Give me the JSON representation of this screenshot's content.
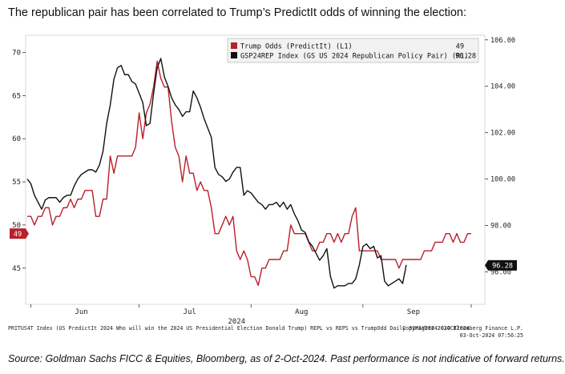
{
  "headline": "The republican pair has been correlated to Trump’s PredictIt odds of winning the election:",
  "footer": {
    "series_info": "PRITUS4T Index (US PredictIt 2024 Who will win the 2024 US Presidential Election Donald Trump) REPL vs REPS vs TrumpOdd  Daily 31MAY2024-03OCT2024",
    "copyright": "Copyright® 2024 Bloomberg Finance L.P.",
    "timestamp": "03-Oct-2024 07:56:25"
  },
  "source": "Source: Goldman Sachs FICC & Equities, Bloomberg, as of 2-Oct-2024. Past performance is not indicative of forward returns.",
  "colors": {
    "trump": "#b8202a",
    "gs": "#111111",
    "legend_bg": "#f2f2f2",
    "last_label_gs": "#111111"
  },
  "chart_data": {
    "type": "line",
    "year_label": "2024",
    "x_ticks": [
      {
        "label": "Jun",
        "date": "2024-06-15"
      },
      {
        "label": "Jul",
        "date": "2024-07-15"
      },
      {
        "label": "Aug",
        "date": "2024-08-15"
      },
      {
        "label": "Sep",
        "date": "2024-09-15"
      }
    ],
    "x_range": [
      "2024-05-31",
      "2024-10-03"
    ],
    "left_axis": {
      "ticks": [
        "70",
        "65",
        "60",
        "55",
        "50",
        "45"
      ],
      "range": [
        40.8,
        72
      ]
    },
    "right_axis": {
      "ticks": [
        "106.00",
        "104.00",
        "102.00",
        "100.00",
        "98.00",
        "96.00"
      ],
      "range": [
        94.6,
        106.2
      ]
    },
    "legend": [
      {
        "name": "Trump Odds (PredictIt) (L1)",
        "last": "49"
      },
      {
        "name": "GSP24REP Index (GS US 2024 Republican Policy Pair) (R1)",
        "last": "96.28"
      }
    ],
    "last_labels": {
      "trump": "49",
      "gs": "96.28"
    },
    "series": [
      {
        "name": "Trump Odds (PredictIt) (L1)",
        "axis": "left",
        "points": [
          [
            "2024-05-31",
            51
          ],
          [
            "2024-06-01",
            51
          ],
          [
            "2024-06-02",
            50
          ],
          [
            "2024-06-03",
            51
          ],
          [
            "2024-06-04",
            51
          ],
          [
            "2024-06-05",
            52
          ],
          [
            "2024-06-06",
            52
          ],
          [
            "2024-06-07",
            50
          ],
          [
            "2024-06-08",
            51
          ],
          [
            "2024-06-09",
            51
          ],
          [
            "2024-06-10",
            52
          ],
          [
            "2024-06-11",
            52
          ],
          [
            "2024-06-12",
            53
          ],
          [
            "2024-06-13",
            52
          ],
          [
            "2024-06-14",
            53
          ],
          [
            "2024-06-15",
            53
          ],
          [
            "2024-06-16",
            54
          ],
          [
            "2024-06-17",
            54
          ],
          [
            "2024-06-18",
            54
          ],
          [
            "2024-06-19",
            51
          ],
          [
            "2024-06-20",
            51
          ],
          [
            "2024-06-21",
            53
          ],
          [
            "2024-06-22",
            53
          ],
          [
            "2024-06-23",
            58
          ],
          [
            "2024-06-24",
            56
          ],
          [
            "2024-06-25",
            58
          ],
          [
            "2024-06-26",
            58
          ],
          [
            "2024-06-27",
            58
          ],
          [
            "2024-06-28",
            58
          ],
          [
            "2024-06-29",
            58
          ],
          [
            "2024-06-30",
            59
          ],
          [
            "2024-07-01",
            63
          ],
          [
            "2024-07-02",
            60
          ],
          [
            "2024-07-03",
            63
          ],
          [
            "2024-07-04",
            64
          ],
          [
            "2024-07-05",
            66
          ],
          [
            "2024-07-06",
            69
          ],
          [
            "2024-07-07",
            67
          ],
          [
            "2024-07-08",
            66
          ],
          [
            "2024-07-09",
            66
          ],
          [
            "2024-07-10",
            62
          ],
          [
            "2024-07-11",
            59
          ],
          [
            "2024-07-12",
            58
          ],
          [
            "2024-07-13",
            55
          ],
          [
            "2024-07-14",
            58
          ],
          [
            "2024-07-15",
            56
          ],
          [
            "2024-07-16",
            56
          ],
          [
            "2024-07-17",
            54
          ],
          [
            "2024-07-18",
            55
          ],
          [
            "2024-07-19",
            54
          ],
          [
            "2024-07-20",
            54
          ],
          [
            "2024-07-21",
            52
          ],
          [
            "2024-07-22",
            49
          ],
          [
            "2024-07-23",
            49
          ],
          [
            "2024-07-24",
            50
          ],
          [
            "2024-07-25",
            51
          ],
          [
            "2024-07-26",
            50
          ],
          [
            "2024-07-27",
            51
          ],
          [
            "2024-07-28",
            47
          ],
          [
            "2024-07-29",
            46
          ],
          [
            "2024-07-30",
            47
          ],
          [
            "2024-07-31",
            46
          ],
          [
            "2024-08-01",
            44
          ],
          [
            "2024-08-02",
            44
          ],
          [
            "2024-08-03",
            43
          ],
          [
            "2024-08-04",
            45
          ],
          [
            "2024-08-05",
            45
          ],
          [
            "2024-08-06",
            46
          ],
          [
            "2024-08-07",
            46
          ],
          [
            "2024-08-08",
            46
          ],
          [
            "2024-08-09",
            46
          ],
          [
            "2024-08-10",
            47
          ],
          [
            "2024-08-11",
            47
          ],
          [
            "2024-08-12",
            50
          ],
          [
            "2024-08-13",
            49
          ],
          [
            "2024-08-14",
            49
          ],
          [
            "2024-08-15",
            49
          ],
          [
            "2024-08-16",
            49
          ],
          [
            "2024-08-17",
            48
          ],
          [
            "2024-08-18",
            47
          ],
          [
            "2024-08-19",
            47
          ],
          [
            "2024-08-20",
            48
          ],
          [
            "2024-08-21",
            48
          ],
          [
            "2024-08-22",
            49
          ],
          [
            "2024-08-23",
            49
          ],
          [
            "2024-08-24",
            48
          ],
          [
            "2024-08-25",
            49
          ],
          [
            "2024-08-26",
            48
          ],
          [
            "2024-08-27",
            49
          ],
          [
            "2024-08-28",
            49
          ],
          [
            "2024-08-29",
            51
          ],
          [
            "2024-08-30",
            52
          ],
          [
            "2024-08-31",
            47
          ],
          [
            "2024-09-01",
            47
          ],
          [
            "2024-09-02",
            47
          ],
          [
            "2024-09-03",
            47
          ],
          [
            "2024-09-04",
            47
          ],
          [
            "2024-09-05",
            47
          ],
          [
            "2024-09-06",
            46
          ],
          [
            "2024-09-07",
            46
          ],
          [
            "2024-09-08",
            46
          ],
          [
            "2024-09-09",
            46
          ],
          [
            "2024-09-10",
            46
          ],
          [
            "2024-09-11",
            45
          ],
          [
            "2024-09-12",
            46
          ],
          [
            "2024-09-13",
            46
          ],
          [
            "2024-09-14",
            46
          ],
          [
            "2024-09-15",
            46
          ],
          [
            "2024-09-16",
            46
          ],
          [
            "2024-09-17",
            46
          ],
          [
            "2024-09-18",
            47
          ],
          [
            "2024-09-19",
            47
          ],
          [
            "2024-09-20",
            47
          ],
          [
            "2024-09-21",
            48
          ],
          [
            "2024-09-22",
            48
          ],
          [
            "2024-09-23",
            48
          ],
          [
            "2024-09-24",
            49
          ],
          [
            "2024-09-25",
            49
          ],
          [
            "2024-09-26",
            48
          ],
          [
            "2024-09-27",
            49
          ],
          [
            "2024-09-28",
            48
          ],
          [
            "2024-09-29",
            48
          ],
          [
            "2024-09-30",
            49
          ],
          [
            "2024-10-01",
            49
          ]
        ]
      },
      {
        "name": "GSP24REP Index (GS US 2024 Republican Policy Pair) (R1)",
        "axis": "right",
        "points": [
          [
            "2024-05-31",
            100.0
          ],
          [
            "2024-06-01",
            99.8
          ],
          [
            "2024-06-02",
            99.3
          ],
          [
            "2024-06-03",
            99.0
          ],
          [
            "2024-06-04",
            98.7
          ],
          [
            "2024-06-05",
            99.1
          ],
          [
            "2024-06-06",
            99.2
          ],
          [
            "2024-06-07",
            99.2
          ],
          [
            "2024-06-08",
            99.2
          ],
          [
            "2024-06-09",
            99.0
          ],
          [
            "2024-06-10",
            99.2
          ],
          [
            "2024-06-11",
            99.3
          ],
          [
            "2024-06-12",
            99.3
          ],
          [
            "2024-06-13",
            99.7
          ],
          [
            "2024-06-14",
            100.0
          ],
          [
            "2024-06-15",
            100.2
          ],
          [
            "2024-06-16",
            100.3
          ],
          [
            "2024-06-17",
            100.4
          ],
          [
            "2024-06-18",
            100.4
          ],
          [
            "2024-06-19",
            100.3
          ],
          [
            "2024-06-20",
            100.6
          ],
          [
            "2024-06-21",
            101.2
          ],
          [
            "2024-06-22",
            102.4
          ],
          [
            "2024-06-23",
            103.2
          ],
          [
            "2024-06-24",
            104.3
          ],
          [
            "2024-06-25",
            104.8
          ],
          [
            "2024-06-26",
            104.9
          ],
          [
            "2024-06-27",
            104.5
          ],
          [
            "2024-06-28",
            104.5
          ],
          [
            "2024-06-29",
            104.2
          ],
          [
            "2024-06-30",
            104.1
          ],
          [
            "2024-07-01",
            103.7
          ],
          [
            "2024-07-02",
            103.3
          ],
          [
            "2024-07-03",
            102.3
          ],
          [
            "2024-07-04",
            102.4
          ],
          [
            "2024-07-05",
            103.7
          ],
          [
            "2024-07-06",
            104.8
          ],
          [
            "2024-07-07",
            105.2
          ],
          [
            "2024-07-08",
            104.4
          ],
          [
            "2024-07-09",
            104.0
          ],
          [
            "2024-07-10",
            103.5
          ],
          [
            "2024-07-11",
            103.2
          ],
          [
            "2024-07-12",
            103.0
          ],
          [
            "2024-07-13",
            102.7
          ],
          [
            "2024-07-14",
            102.9
          ],
          [
            "2024-07-15",
            102.9
          ],
          [
            "2024-07-16",
            103.8
          ],
          [
            "2024-07-17",
            103.5
          ],
          [
            "2024-07-18",
            103.1
          ],
          [
            "2024-07-19",
            102.6
          ],
          [
            "2024-07-20",
            102.2
          ],
          [
            "2024-07-21",
            101.8
          ],
          [
            "2024-07-22",
            100.5
          ],
          [
            "2024-07-23",
            100.2
          ],
          [
            "2024-07-24",
            100.1
          ],
          [
            "2024-07-25",
            99.9
          ],
          [
            "2024-07-26",
            100.0
          ],
          [
            "2024-07-27",
            100.3
          ],
          [
            "2024-07-28",
            100.5
          ],
          [
            "2024-07-29",
            100.5
          ],
          [
            "2024-07-30",
            99.3
          ],
          [
            "2024-07-31",
            99.5
          ],
          [
            "2024-08-01",
            99.4
          ],
          [
            "2024-08-02",
            99.2
          ],
          [
            "2024-08-03",
            99.0
          ],
          [
            "2024-08-04",
            98.9
          ],
          [
            "2024-08-05",
            98.7
          ],
          [
            "2024-08-06",
            98.9
          ],
          [
            "2024-08-07",
            98.9
          ],
          [
            "2024-08-08",
            99.0
          ],
          [
            "2024-08-09",
            98.8
          ],
          [
            "2024-08-10",
            99.0
          ],
          [
            "2024-08-11",
            98.7
          ],
          [
            "2024-08-12",
            98.9
          ],
          [
            "2024-08-13",
            98.5
          ],
          [
            "2024-08-14",
            98.2
          ],
          [
            "2024-08-15",
            97.8
          ],
          [
            "2024-08-16",
            97.7
          ],
          [
            "2024-08-17",
            97.3
          ],
          [
            "2024-08-18",
            97.1
          ],
          [
            "2024-08-19",
            96.8
          ],
          [
            "2024-08-20",
            96.5
          ],
          [
            "2024-08-21",
            96.7
          ],
          [
            "2024-08-22",
            97.0
          ],
          [
            "2024-08-23",
            95.8
          ],
          [
            "2024-08-24",
            95.3
          ],
          [
            "2024-08-25",
            95.4
          ],
          [
            "2024-08-26",
            95.4
          ],
          [
            "2024-08-27",
            95.4
          ],
          [
            "2024-08-28",
            95.5
          ],
          [
            "2024-08-29",
            95.5
          ],
          [
            "2024-08-30",
            95.7
          ],
          [
            "2024-08-31",
            96.3
          ],
          [
            "2024-09-01",
            97.1
          ],
          [
            "2024-09-02",
            97.2
          ],
          [
            "2024-09-03",
            97.0
          ],
          [
            "2024-09-04",
            97.1
          ],
          [
            "2024-09-05",
            96.6
          ],
          [
            "2024-09-06",
            96.7
          ],
          [
            "2024-09-07",
            95.6
          ],
          [
            "2024-09-08",
            95.4
          ],
          [
            "2024-09-09",
            95.5
          ],
          [
            "2024-09-10",
            95.6
          ],
          [
            "2024-09-11",
            95.7
          ],
          [
            "2024-09-12",
            95.5
          ],
          [
            "2024-09-13",
            96.3
          ]
        ]
      }
    ]
  }
}
